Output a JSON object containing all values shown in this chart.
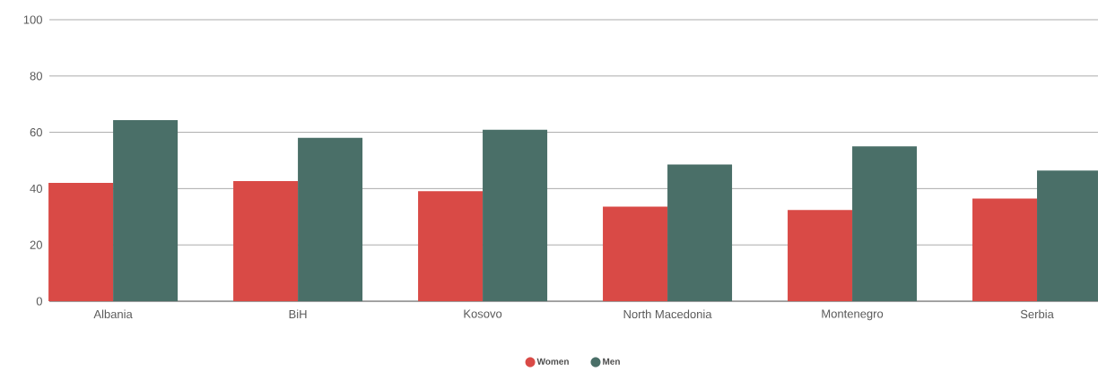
{
  "chart_data": {
    "type": "bar",
    "categories": [
      "Albania",
      "BiH",
      "Kosovo",
      "North Macedonia",
      "Montenegro",
      "Serbia"
    ],
    "series": [
      {
        "name": "Women",
        "color": "#d94a46",
        "values": [
          42.0,
          42.7,
          39.1,
          33.6,
          32.4,
          36.5
        ]
      },
      {
        "name": "Men",
        "color": "#4a6f68",
        "values": [
          64.3,
          58.0,
          60.9,
          48.6,
          55.0,
          46.4
        ]
      }
    ],
    "ylim": [
      0,
      100
    ],
    "yticks": [
      0,
      20,
      40,
      60,
      80,
      100
    ],
    "grid": "y",
    "legend": "bottom",
    "marker": "circle"
  }
}
